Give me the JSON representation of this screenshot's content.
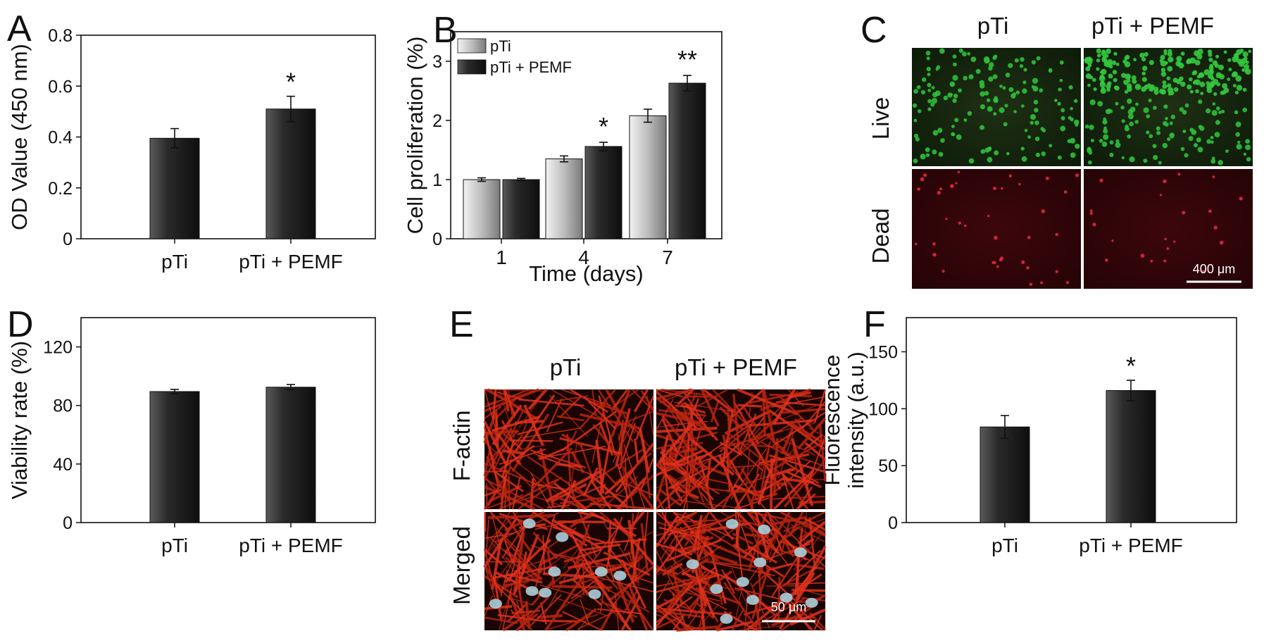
{
  "chart_data": [
    {
      "panel": "A",
      "type": "bar",
      "categories": [
        "pTi",
        "pTi + PEMF"
      ],
      "values": [
        0.395,
        0.51
      ],
      "errors": [
        0.038,
        0.05
      ],
      "significance": [
        "",
        "*"
      ],
      "ylabel": "OD Value (450 nm)",
      "xlabel": "",
      "ylim": [
        0,
        0.8
      ],
      "yticks": [
        0,
        0.2,
        0.4,
        0.6,
        0.8
      ],
      "ytick_labels": [
        "0",
        "0.2",
        "0.4",
        "0.6",
        "0.8"
      ]
    },
    {
      "panel": "B",
      "type": "bar",
      "categories": [
        "1",
        "4",
        "7"
      ],
      "series": [
        {
          "name": "pTi",
          "values": [
            1.0,
            1.35,
            2.08
          ],
          "errors": [
            0.03,
            0.05,
            0.11
          ]
        },
        {
          "name": "pTi + PEMF",
          "values": [
            1.0,
            1.56,
            2.63
          ],
          "errors": [
            0.02,
            0.07,
            0.13
          ]
        }
      ],
      "significance": [
        "",
        "*",
        "**"
      ],
      "ylabel": "Cell proliferation (%)",
      "xlabel": "Time (days)",
      "ylim": [
        0,
        3.5
      ],
      "yticks": [
        0,
        1,
        2,
        3
      ],
      "ytick_labels": [
        "0",
        "1",
        "2",
        "3"
      ],
      "legend_position": "top-left"
    },
    {
      "panel": "D",
      "type": "bar",
      "categories": [
        "pTi",
        "pTi + PEMF"
      ],
      "values": [
        89.5,
        92.5
      ],
      "errors": [
        1.5,
        1.8
      ],
      "significance": [
        "",
        ""
      ],
      "ylabel": "Viability rate (%)",
      "xlabel": "",
      "ylim": [
        0,
        140
      ],
      "yticks": [
        0,
        40,
        80,
        120
      ],
      "ytick_labels": [
        "0",
        "40",
        "80",
        "120"
      ]
    },
    {
      "panel": "F",
      "type": "bar",
      "categories": [
        "pTi",
        "pTi + PEMF"
      ],
      "values": [
        84,
        116
      ],
      "errors": [
        10,
        9
      ],
      "significance": [
        "",
        "*"
      ],
      "ylabel": "Fluorescence intensity (a.u.)",
      "ylabel_lines": [
        "Fluorescence",
        "intensity (a.u.)"
      ],
      "xlabel": "",
      "ylim": [
        0,
        180
      ],
      "yticks": [
        0,
        50,
        100,
        150
      ],
      "ytick_labels": [
        "0",
        "50",
        "100",
        "150"
      ]
    }
  ],
  "panels": {
    "A": "A",
    "B": "B",
    "C": "C",
    "D": "D",
    "E": "E",
    "F": "F"
  },
  "micrographs": {
    "C": {
      "columns": [
        "pTi",
        "pTi + PEMF"
      ],
      "rows": [
        "Live",
        "Dead"
      ],
      "scale_bar": "400 μm",
      "colors": {
        "live": "#1f9a2e",
        "dead": "#d8203a",
        "live_bg": "#142410",
        "dead_bg": "#2e0508"
      }
    },
    "E": {
      "columns": [
        "pTi",
        "pTi + PEMF"
      ],
      "rows": [
        "F-actin",
        "Merged"
      ],
      "scale_bar": "50 μm",
      "colors": {
        "actin": "#e0321c",
        "nucleus": "#9fc7d8",
        "bg": "#1a0504"
      }
    }
  }
}
